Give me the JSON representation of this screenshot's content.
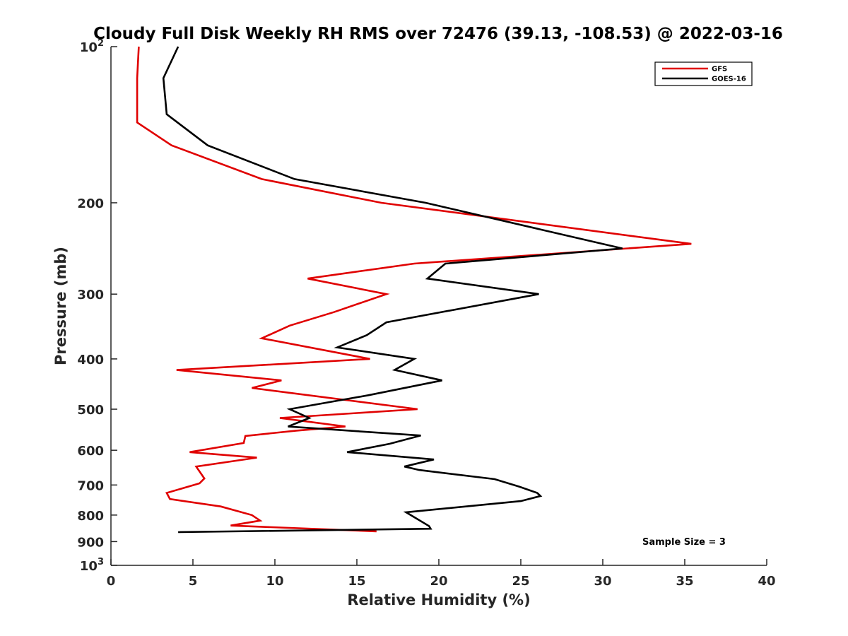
{
  "chart_data": {
    "type": "line",
    "title": "Cloudy Full Disk Weekly RH RMS over 72476 (39.13, -108.53) @ 2022-03-16",
    "xlabel": "Relative Humidity (%)",
    "ylabel": "Pressure (mb)",
    "xlim": [
      0,
      40
    ],
    "ylim": [
      100,
      1000
    ],
    "y_scale": "log",
    "y_reversed": true,
    "xticks": [
      "0",
      "5",
      "10",
      "15",
      "20",
      "25",
      "30",
      "35",
      "40"
    ],
    "yticks": [
      {
        "value": 100,
        "label": "10",
        "sup": "2"
      },
      {
        "value": 200,
        "label": "200"
      },
      {
        "value": 300,
        "label": "300"
      },
      {
        "value": 400,
        "label": "400"
      },
      {
        "value": 500,
        "label": "500"
      },
      {
        "value": 600,
        "label": "600"
      },
      {
        "value": 700,
        "label": "700"
      },
      {
        "value": 800,
        "label": "800"
      },
      {
        "value": 900,
        "label": "900"
      },
      {
        "value": 1000,
        "label": "10",
        "sup": "3"
      }
    ],
    "grid": false,
    "legend_position": "top-right",
    "annotation": "Sample Size = 3",
    "series": [
      {
        "name": "GFS",
        "color": "#e00000",
        "points": [
          [
            1.7,
            100
          ],
          [
            1.6,
            115
          ],
          [
            1.6,
            130
          ],
          [
            1.6,
            140
          ],
          [
            3.7,
            155
          ],
          [
            9.2,
            180
          ],
          [
            16.5,
            200
          ],
          [
            35.4,
            240
          ],
          [
            18.5,
            262
          ],
          [
            12.0,
            280
          ],
          [
            16.8,
            300
          ],
          [
            13.6,
            325
          ],
          [
            10.9,
            345
          ],
          [
            9.2,
            365
          ],
          [
            15.8,
            400
          ],
          [
            4.0,
            420
          ],
          [
            10.4,
            440
          ],
          [
            8.6,
            455
          ],
          [
            18.7,
            500
          ],
          [
            10.3,
            520
          ],
          [
            14.3,
            540
          ],
          [
            11.3,
            550
          ],
          [
            8.2,
            563
          ],
          [
            8.1,
            581
          ],
          [
            4.8,
            605
          ],
          [
            8.9,
            620
          ],
          [
            5.2,
            645
          ],
          [
            5.7,
            680
          ],
          [
            5.4,
            695
          ],
          [
            3.4,
            725
          ],
          [
            3.6,
            745
          ],
          [
            6.7,
            770
          ],
          [
            8.6,
            800
          ],
          [
            9.1,
            820
          ],
          [
            7.3,
            838
          ],
          [
            16.2,
            860
          ]
        ]
      },
      {
        "name": "GOES-16",
        "color": "#000000",
        "points": [
          [
            4.1,
            100
          ],
          [
            3.2,
            115
          ],
          [
            3.4,
            135
          ],
          [
            5.9,
            155
          ],
          [
            11.2,
            180
          ],
          [
            19.2,
            200
          ],
          [
            31.2,
            245
          ],
          [
            20.4,
            262
          ],
          [
            19.3,
            280
          ],
          [
            26.1,
            300
          ],
          [
            16.8,
            340
          ],
          [
            15.6,
            360
          ],
          [
            13.8,
            380
          ],
          [
            18.5,
            400
          ],
          [
            17.3,
            420
          ],
          [
            20.2,
            440
          ],
          [
            15.7,
            470
          ],
          [
            10.9,
            500
          ],
          [
            12.1,
            520
          ],
          [
            10.8,
            540
          ],
          [
            18.9,
            562
          ],
          [
            17.0,
            583
          ],
          [
            14.4,
            605
          ],
          [
            19.7,
            625
          ],
          [
            17.9,
            645
          ],
          [
            18.8,
            655
          ],
          [
            23.4,
            682
          ],
          [
            24.9,
            705
          ],
          [
            26.0,
            725
          ],
          [
            26.2,
            735
          ],
          [
            25.0,
            752
          ],
          [
            18.0,
            790
          ],
          [
            19.4,
            840
          ],
          [
            19.5,
            850
          ],
          [
            4.1,
            863
          ]
        ]
      }
    ]
  }
}
